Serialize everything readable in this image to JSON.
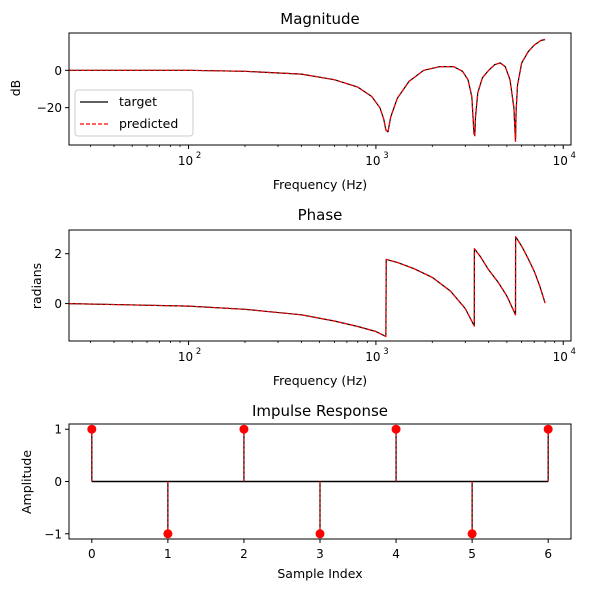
{
  "colors": {
    "target": "#000000",
    "predicted": "#ff0000",
    "stem_marker": "#ff0000"
  },
  "chart_data": [
    {
      "type": "line",
      "title": "Magnitude",
      "xlabel": "Frequency (Hz)",
      "ylabel": "dB",
      "xscale": "log",
      "xlim": [
        23,
        11000
      ],
      "ylim": [
        -40,
        20
      ],
      "x_ticks": [
        100,
        1000,
        10000
      ],
      "x_tick_labels": [
        {
          "base": "10",
          "exp": "2"
        },
        {
          "base": "10",
          "exp": "3"
        },
        {
          "base": "10",
          "exp": "4"
        }
      ],
      "y_ticks": [
        0,
        -20
      ],
      "y_tick_labels": [
        "0",
        "−20"
      ],
      "legend": {
        "placement": "lower-left",
        "entries": [
          {
            "label": "target",
            "style": "solid",
            "color": "#000000"
          },
          {
            "label": "predicted",
            "style": "dashed",
            "color": "#ff0000"
          }
        ]
      },
      "series": [
        {
          "name": "target",
          "style": "solid",
          "color": "#000000"
        },
        {
          "name": "predicted",
          "style": "dashed",
          "color": "#ff0000"
        }
      ],
      "x": [
        23,
        100,
        200,
        400,
        600,
        800,
        950,
        1050,
        1100,
        1130,
        1160,
        1200,
        1300,
        1500,
        1800,
        2200,
        2600,
        2900,
        3100,
        3250,
        3340,
        3370,
        3400,
        3500,
        3700,
        4000,
        4300,
        4600,
        4900,
        5200,
        5450,
        5560,
        5600,
        5700,
        6000,
        6500,
        7000,
        7600,
        8000
      ],
      "y": [
        0,
        0,
        -0.5,
        -2,
        -5,
        -9,
        -14,
        -20,
        -26,
        -32,
        -33,
        -25,
        -15,
        -6,
        0,
        2,
        2,
        -0.5,
        -5,
        -14,
        -34,
        -35,
        -25,
        -12,
        -4,
        0,
        3,
        4,
        2,
        -5,
        -20,
        -38,
        -22,
        -8,
        4,
        10,
        13.5,
        16,
        16.5
      ]
    },
    {
      "type": "line",
      "title": "Phase",
      "xlabel": "Frequency (Hz)",
      "ylabel": "radians",
      "xscale": "log",
      "xlim": [
        23,
        11000
      ],
      "ylim": [
        -1.5,
        2.95
      ],
      "x_ticks": [
        100,
        1000,
        10000
      ],
      "x_tick_labels": [
        {
          "base": "10",
          "exp": "2"
        },
        {
          "base": "10",
          "exp": "3"
        },
        {
          "base": "10",
          "exp": "4"
        }
      ],
      "y_ticks": [
        2,
        0
      ],
      "y_tick_labels": [
        "2",
        "0"
      ],
      "series": [
        {
          "name": "target",
          "style": "solid",
          "color": "#000000"
        },
        {
          "name": "predicted",
          "style": "dashed",
          "color": "#ff0000"
        }
      ],
      "x": [
        23,
        100,
        200,
        400,
        600,
        800,
        1000,
        1130,
        1135,
        1300,
        1600,
        2000,
        2500,
        3000,
        3350,
        3355,
        3600,
        4000,
        4500,
        5000,
        5560,
        5570,
        6000,
        6500,
        7000,
        7500,
        8000
      ],
      "y": [
        0,
        -0.1,
        -0.23,
        -0.45,
        -0.7,
        -0.92,
        -1.12,
        -1.32,
        1.77,
        1.65,
        1.4,
        1.05,
        0.5,
        -0.2,
        -0.9,
        2.2,
        1.9,
        1.35,
        0.85,
        0.3,
        -0.45,
        2.68,
        2.3,
        1.8,
        1.3,
        0.7,
        0.02
      ]
    },
    {
      "type": "stem",
      "title": "Impulse Response",
      "xlabel": "Sample Index",
      "ylabel": "Amplitude",
      "xlim": [
        -0.3,
        6.3
      ],
      "ylim": [
        -1.1,
        1.1
      ],
      "x_ticks": [
        0,
        1,
        2,
        3,
        4,
        5,
        6
      ],
      "x_tick_labels": [
        "0",
        "1",
        "2",
        "3",
        "4",
        "5",
        "6"
      ],
      "y_ticks": [
        1,
        0,
        -1
      ],
      "y_tick_labels": [
        "1",
        "0",
        "−1"
      ],
      "series": [
        {
          "name": "target",
          "color": "#000000"
        },
        {
          "name": "predicted",
          "color": "#ff0000"
        }
      ],
      "x": [
        0,
        1,
        2,
        3,
        4,
        5,
        6
      ],
      "values": [
        1,
        -1,
        1,
        -1,
        1,
        -1,
        1
      ]
    }
  ]
}
